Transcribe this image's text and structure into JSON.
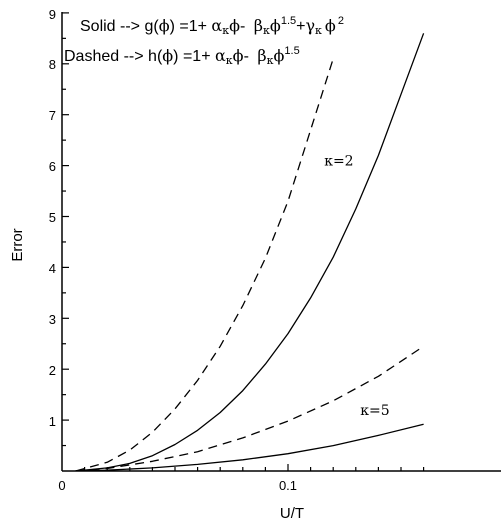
{
  "chart_data": {
    "type": "line",
    "xlabel": "U/T",
    "ylabel": "Error",
    "xlim": [
      0,
      0.16
    ],
    "ylim": [
      0,
      9
    ],
    "x_ticks": [
      "0",
      "0.1"
    ],
    "y_ticks": [
      "1",
      "2",
      "3",
      "4",
      "5",
      "6",
      "7",
      "8",
      "9"
    ],
    "legend": {
      "solid": {
        "prefix": "Solid --> g(",
        "phi": "ϕ",
        "eq": ") =1+ ",
        "alpha": "α",
        "kappa": "κ",
        "minus": "- ",
        "beta": "β",
        "exp1": "1.5",
        "plus": "+",
        "gamma": "γ",
        "exp2": "2"
      },
      "dashed": {
        "prefix": "Dashed --> h(",
        "phi": "ϕ",
        "eq": ") =1+ ",
        "alpha": "α",
        "kappa": "κ",
        "minus": "- ",
        "beta": "β",
        "exp1": "1.5"
      }
    },
    "annotations": [
      {
        "text": "κ=2",
        "x": 0.116,
        "y": 6.0
      },
      {
        "text": "κ=5",
        "x": 0.132,
        "y": 1.1
      }
    ],
    "series": [
      {
        "style": "dashed",
        "x": [
          0.006,
          0.02,
          0.03,
          0.04,
          0.05,
          0.06,
          0.07,
          0.08,
          0.09,
          0.1,
          0.11,
          0.12
        ],
        "values": [
          0.0,
          0.17,
          0.41,
          0.76,
          1.22,
          1.78,
          2.45,
          3.25,
          4.18,
          5.3,
          6.7,
          8.1
        ]
      },
      {
        "style": "solid",
        "x": [
          0.006,
          0.02,
          0.03,
          0.04,
          0.05,
          0.06,
          0.07,
          0.08,
          0.09,
          0.1,
          0.11,
          0.12,
          0.13,
          0.14,
          0.15,
          0.16
        ],
        "values": [
          0.0,
          0.06,
          0.15,
          0.3,
          0.52,
          0.8,
          1.15,
          1.58,
          2.1,
          2.7,
          3.4,
          4.2,
          5.15,
          6.2,
          7.4,
          8.6
        ]
      },
      {
        "style": "dashed",
        "x": [
          0.006,
          0.02,
          0.04,
          0.06,
          0.08,
          0.1,
          0.12,
          0.14,
          0.16
        ],
        "values": [
          0.0,
          0.05,
          0.19,
          0.38,
          0.65,
          0.98,
          1.38,
          1.86,
          2.45
        ]
      },
      {
        "style": "solid",
        "x": [
          0.006,
          0.02,
          0.04,
          0.06,
          0.08,
          0.1,
          0.12,
          0.14,
          0.16
        ],
        "values": [
          0.0,
          0.015,
          0.06,
          0.13,
          0.22,
          0.34,
          0.5,
          0.7,
          0.92
        ]
      }
    ]
  }
}
